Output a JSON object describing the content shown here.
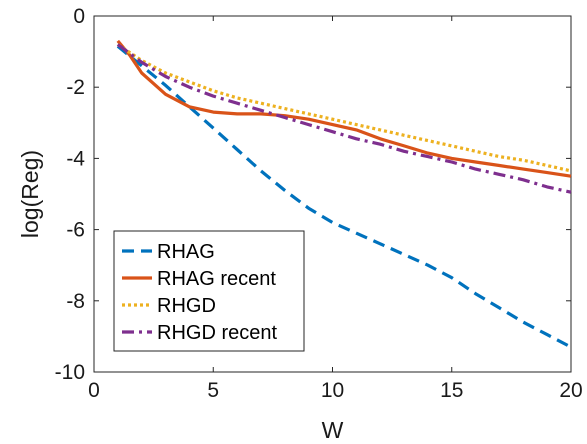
{
  "chart_data": {
    "type": "line",
    "title": "",
    "xlabel": "W",
    "ylabel": "log(Reg)",
    "xlim": [
      0,
      20
    ],
    "ylim": [
      -10,
      0
    ],
    "x_ticks": [
      0,
      5,
      10,
      15,
      20
    ],
    "x_tick_labels": [
      "0",
      "5",
      "10",
      "15",
      "20"
    ],
    "y_ticks": [
      0,
      -2,
      -4,
      -6,
      -8,
      -10
    ],
    "y_tick_labels": [
      "0",
      "-2",
      "-4",
      "-6",
      "-8",
      "-10"
    ],
    "grid": false,
    "legend_position": "bottom-left",
    "series": [
      {
        "name": "RHAG",
        "color": "#0072BD",
        "dash": "dashed",
        "x": [
          1,
          2,
          3,
          4,
          5,
          6,
          7,
          8,
          9,
          10,
          11,
          12,
          13,
          14,
          15,
          16,
          17,
          18,
          19,
          20
        ],
        "y": [
          -0.85,
          -1.4,
          -1.95,
          -2.55,
          -3.15,
          -3.75,
          -4.35,
          -4.9,
          -5.4,
          -5.8,
          -6.1,
          -6.4,
          -6.7,
          -7.0,
          -7.35,
          -7.8,
          -8.2,
          -8.6,
          -8.95,
          -9.3
        ]
      },
      {
        "name": "RHAG recent",
        "color": "#D95319",
        "dash": "solid",
        "x": [
          1,
          1.5,
          2,
          3,
          4,
          5,
          6,
          7,
          8,
          9,
          10,
          11,
          12,
          13,
          14,
          15,
          16,
          17,
          18,
          19,
          20
        ],
        "y": [
          -0.7,
          -1.1,
          -1.6,
          -2.2,
          -2.55,
          -2.7,
          -2.75,
          -2.75,
          -2.8,
          -2.9,
          -3.05,
          -3.2,
          -3.45,
          -3.65,
          -3.85,
          -4.0,
          -4.1,
          -4.2,
          -4.3,
          -4.4,
          -4.5
        ]
      },
      {
        "name": "RHGD",
        "color": "#EDB120",
        "dash": "dotted",
        "x": [
          1,
          2,
          3,
          4,
          5,
          6,
          7,
          8,
          9,
          10,
          11,
          12,
          13,
          14,
          15,
          16,
          17,
          18,
          19,
          20
        ],
        "y": [
          -0.8,
          -1.25,
          -1.6,
          -1.85,
          -2.1,
          -2.3,
          -2.45,
          -2.6,
          -2.75,
          -2.9,
          -3.05,
          -3.2,
          -3.35,
          -3.5,
          -3.65,
          -3.8,
          -3.95,
          -4.05,
          -4.2,
          -4.35
        ]
      },
      {
        "name": "RHGD recent",
        "color": "#7E2F8E",
        "dash": "dash-dot",
        "x": [
          1,
          2,
          3,
          4,
          5,
          6,
          7,
          8,
          9,
          10,
          11,
          12,
          13,
          14,
          15,
          16,
          17,
          18,
          19,
          20
        ],
        "y": [
          -0.8,
          -1.3,
          -1.7,
          -2.0,
          -2.25,
          -2.45,
          -2.65,
          -2.85,
          -3.05,
          -3.25,
          -3.45,
          -3.6,
          -3.8,
          -3.95,
          -4.1,
          -4.3,
          -4.45,
          -4.6,
          -4.8,
          -4.95
        ]
      }
    ]
  }
}
